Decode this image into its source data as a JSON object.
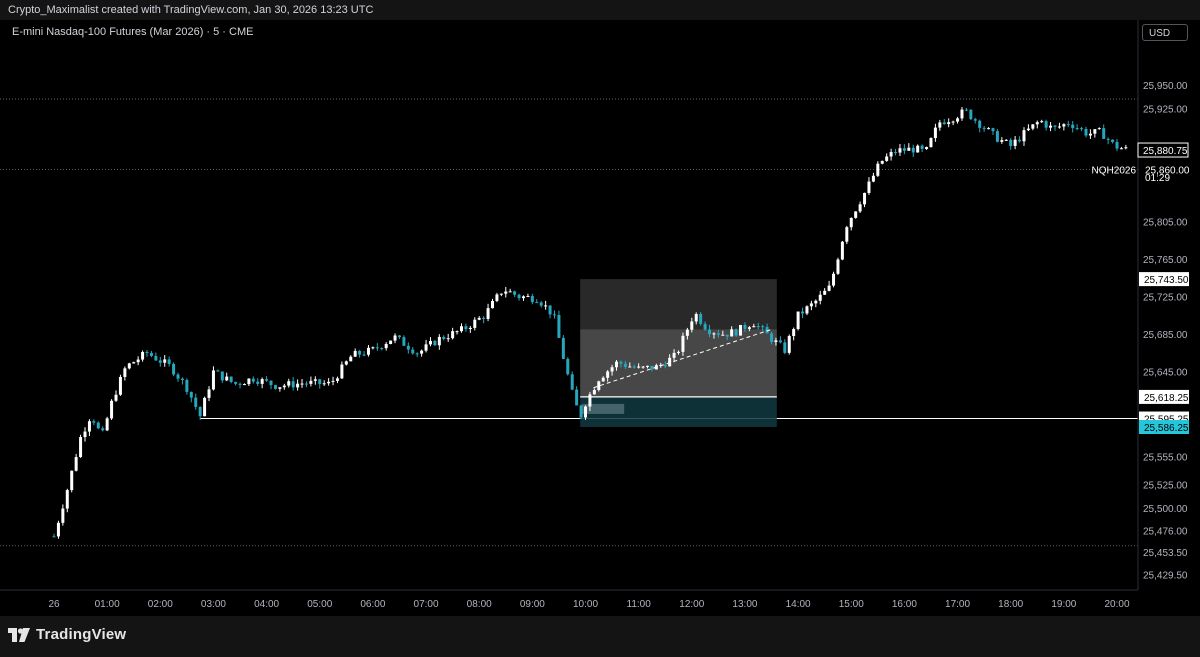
{
  "header": {
    "attribution": "Crypto_Maximalist created with TradingView.com, Jan 30, 2026 13:23 UTC"
  },
  "chart_title": "E-mini Nasdaq-100 Futures (Mar 2026) · 5 · CME",
  "currency": "USD",
  "footer": {
    "brand": "TradingView"
  },
  "colors": {
    "background": "#000000",
    "candle_up": "#ffffff",
    "candle_down": "#26a7bd",
    "accent": "#26c6da"
  },
  "chart_data": {
    "type": "candlestick",
    "symbol": "NQH2026",
    "interval": "5",
    "x_labels": [
      "26",
      "01:00",
      "02:00",
      "03:00",
      "04:00",
      "05:00",
      "06:00",
      "07:00",
      "08:00",
      "09:00",
      "10:00",
      "11:00",
      "12:00",
      "13:00",
      "14:00",
      "15:00",
      "16:00",
      "17:00",
      "18:00",
      "19:00",
      "20:00"
    ],
    "y_ticks": [
      "25,950.00",
      "25,925.00",
      "25,885.00",
      "25,805.00",
      "25,765.00",
      "25,725.00",
      "25,685.00",
      "25,645.00",
      "25,555.00",
      "25,525.00",
      "25,500.00",
      "25,476.00",
      "25,453.50",
      "25,429.50"
    ],
    "y_range": [
      25413,
      25965
    ],
    "price_labels": [
      {
        "text": "25,880.75",
        "value": 25880.75,
        "style": "current"
      },
      {
        "text": "NQH2026",
        "value": 25860,
        "style": "symbol"
      },
      {
        "text": "25,860.00",
        "value": 25860,
        "style": "plain"
      },
      {
        "text": "01:29",
        "value": 25852,
        "style": "plain"
      },
      {
        "text": "25,743.50",
        "value": 25743.5,
        "style": "box"
      },
      {
        "text": "25,618.25",
        "value": 25618.25,
        "style": "box"
      },
      {
        "text": "25,595.25",
        "value": 25595.25,
        "style": "box"
      },
      {
        "text": "25,586.25",
        "value": 25586.25,
        "style": "cyan"
      }
    ],
    "horizontal_lines": [
      {
        "value": 25935,
        "style": "dotted"
      },
      {
        "value": 25860,
        "style": "dotted"
      },
      {
        "value": 25460,
        "style": "dotted"
      },
      {
        "value": 25595.25,
        "style": "solid",
        "from_time": 2.75
      }
    ],
    "position_box": {
      "from_time": 9.9,
      "to_time": 13.6,
      "target": 25743.5,
      "entry": 25618.25,
      "stop": 25586.25,
      "inner_top": 25690
    },
    "key_points": [
      [
        0,
        25470
      ],
      [
        0.25,
        25520
      ],
      [
        0.5,
        25575
      ],
      [
        0.7,
        25600
      ],
      [
        0.9,
        25575
      ],
      [
        1.1,
        25615
      ],
      [
        1.35,
        25650
      ],
      [
        1.75,
        25665
      ],
      [
        2.2,
        25650
      ],
      [
        2.5,
        25628
      ],
      [
        2.75,
        25598
      ],
      [
        3.0,
        25645
      ],
      [
        3.4,
        25632
      ],
      [
        3.75,
        25638
      ],
      [
        4.2,
        25630
      ],
      [
        4.7,
        25633
      ],
      [
        5.2,
        25632
      ],
      [
        5.6,
        25662
      ],
      [
        6.0,
        25668
      ],
      [
        6.4,
        25682
      ],
      [
        6.85,
        25665
      ],
      [
        7.25,
        25680
      ],
      [
        7.7,
        25690
      ],
      [
        8.1,
        25705
      ],
      [
        8.45,
        25733
      ],
      [
        8.75,
        25725
      ],
      [
        9.1,
        25723
      ],
      [
        9.4,
        25705
      ],
      [
        9.55,
        25668
      ],
      [
        9.75,
        25622
      ],
      [
        9.9,
        25596
      ],
      [
        10.0,
        25612
      ],
      [
        10.25,
        25638
      ],
      [
        10.6,
        25655
      ],
      [
        11.0,
        25648
      ],
      [
        11.35,
        25650
      ],
      [
        11.7,
        25662
      ],
      [
        12.05,
        25708
      ],
      [
        12.3,
        25690
      ],
      [
        12.6,
        25685
      ],
      [
        12.85,
        25688
      ],
      [
        13.15,
        25698
      ],
      [
        13.5,
        25680
      ],
      [
        13.75,
        25668
      ],
      [
        14.0,
        25705
      ],
      [
        14.3,
        25718
      ],
      [
        14.6,
        25735
      ],
      [
        14.9,
        25800
      ],
      [
        15.25,
        25835
      ],
      [
        15.55,
        25868
      ],
      [
        15.85,
        25880
      ],
      [
        16.2,
        25882
      ],
      [
        16.4,
        25878
      ],
      [
        16.65,
        25910
      ],
      [
        16.9,
        25915
      ],
      [
        17.15,
        25922
      ],
      [
        17.35,
        25912
      ],
      [
        17.7,
        25895
      ],
      [
        18.0,
        25885
      ],
      [
        18.25,
        25898
      ],
      [
        18.55,
        25912
      ],
      [
        18.8,
        25903
      ],
      [
        19.1,
        25910
      ],
      [
        19.45,
        25898
      ],
      [
        19.7,
        25900
      ],
      [
        19.95,
        25885
      ],
      [
        20.2,
        25880.75
      ]
    ]
  }
}
